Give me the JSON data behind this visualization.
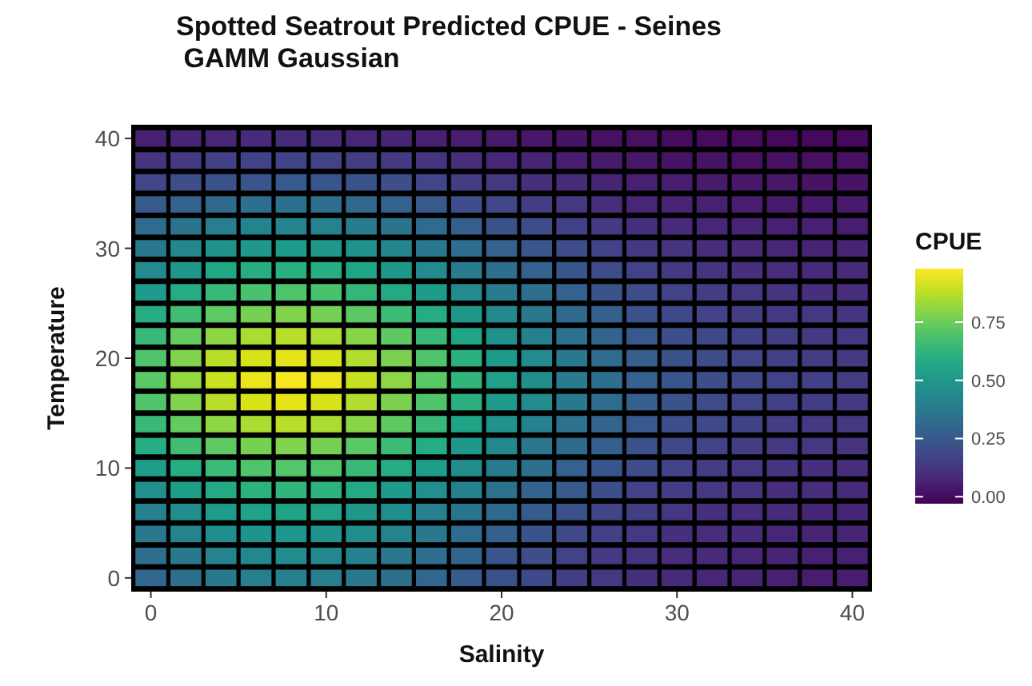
{
  "chart_data": {
    "type": "heatmap",
    "title": "Spotted Seatrout Predicted CPUE - Seines\n GAMM Gaussian",
    "xlabel": "Salinity",
    "ylabel": "Temperature",
    "clabel": "CPUE",
    "categories": [
      "0",
      null,
      null,
      null,
      null,
      "10",
      null,
      null,
      null,
      null,
      "20",
      null,
      null,
      null,
      null,
      "30",
      null,
      null,
      null,
      null,
      "40"
    ],
    "y_categories": [
      "40",
      null,
      null,
      null,
      null,
      "30",
      null,
      null,
      null,
      null,
      "20",
      null,
      null,
      null,
      null,
      "10",
      null,
      null,
      null,
      null,
      "0"
    ],
    "clim": [
      -0.03,
      0.98
    ],
    "cticks": [
      {
        "value": 0,
        "label": "0.00"
      },
      {
        "value": 0.25,
        "label": "0.25"
      },
      {
        "value": 0.5,
        "label": "0.50"
      },
      {
        "value": 0.75,
        "label": "0.75"
      }
    ],
    "cells": [
      [
        0.06,
        0.07,
        0.08,
        0.09,
        0.09,
        0.09,
        0.08,
        0.07,
        0.06,
        0.05,
        0.04,
        0.03,
        0.02,
        0.01,
        0.01,
        0,
        0,
        0,
        -0.01,
        -0.01,
        -0.01
      ],
      [
        0.12,
        0.14,
        0.16,
        0.17,
        0.17,
        0.17,
        0.15,
        0.14,
        0.12,
        0.1,
        0.08,
        0.07,
        0.05,
        0.04,
        0.03,
        0.02,
        0.02,
        0.01,
        0.01,
        0.01,
        0.01
      ],
      [
        0.18,
        0.21,
        0.23,
        0.24,
        0.25,
        0.24,
        0.23,
        0.21,
        0.18,
        0.15,
        0.13,
        0.11,
        0.09,
        0.07,
        0.06,
        0.05,
        0.04,
        0.03,
        0.03,
        0.02,
        0.02
      ],
      [
        0.25,
        0.28,
        0.31,
        0.33,
        0.34,
        0.33,
        0.31,
        0.28,
        0.25,
        0.21,
        0.18,
        0.15,
        0.13,
        0.1,
        0.08,
        0.07,
        0.06,
        0.05,
        0.04,
        0.04,
        0.04
      ],
      [
        0.32,
        0.36,
        0.4,
        0.42,
        0.43,
        0.42,
        0.39,
        0.36,
        0.32,
        0.27,
        0.23,
        0.2,
        0.16,
        0.14,
        0.11,
        0.09,
        0.08,
        0.07,
        0.06,
        0.06,
        0.05
      ],
      [
        0.38,
        0.44,
        0.48,
        0.51,
        0.52,
        0.51,
        0.48,
        0.43,
        0.38,
        0.33,
        0.28,
        0.24,
        0.2,
        0.17,
        0.14,
        0.12,
        0.1,
        0.09,
        0.08,
        0.07,
        0.07
      ],
      [
        0.45,
        0.51,
        0.57,
        0.6,
        0.61,
        0.6,
        0.56,
        0.51,
        0.45,
        0.39,
        0.33,
        0.28,
        0.24,
        0.2,
        0.17,
        0.14,
        0.12,
        0.11,
        0.1,
        0.09,
        0.09
      ],
      [
        0.52,
        0.59,
        0.65,
        0.69,
        0.7,
        0.69,
        0.64,
        0.58,
        0.52,
        0.45,
        0.39,
        0.33,
        0.28,
        0.23,
        0.2,
        0.17,
        0.15,
        0.13,
        0.12,
        0.11,
        0.1
      ],
      [
        0.59,
        0.67,
        0.73,
        0.77,
        0.79,
        0.77,
        0.72,
        0.66,
        0.59,
        0.51,
        0.44,
        0.37,
        0.31,
        0.27,
        0.22,
        0.19,
        0.17,
        0.15,
        0.13,
        0.13,
        0.12
      ],
      [
        0.65,
        0.74,
        0.81,
        0.85,
        0.87,
        0.85,
        0.8,
        0.73,
        0.65,
        0.56,
        0.48,
        0.41,
        0.35,
        0.29,
        0.25,
        0.21,
        0.19,
        0.17,
        0.15,
        0.14,
        0.13
      ],
      [
        0.7,
        0.79,
        0.87,
        0.92,
        0.94,
        0.92,
        0.86,
        0.78,
        0.7,
        0.61,
        0.52,
        0.45,
        0.38,
        0.32,
        0.27,
        0.23,
        0.2,
        0.18,
        0.16,
        0.15,
        0.14
      ],
      [
        0.72,
        0.82,
        0.9,
        0.95,
        0.97,
        0.95,
        0.89,
        0.81,
        0.72,
        0.63,
        0.54,
        0.46,
        0.39,
        0.33,
        0.28,
        0.24,
        0.21,
        0.19,
        0.17,
        0.16,
        0.15
      ],
      [
        0.7,
        0.79,
        0.87,
        0.92,
        0.94,
        0.92,
        0.86,
        0.78,
        0.7,
        0.61,
        0.52,
        0.45,
        0.38,
        0.32,
        0.27,
        0.23,
        0.2,
        0.18,
        0.16,
        0.15,
        0.14
      ],
      [
        0.65,
        0.74,
        0.81,
        0.85,
        0.87,
        0.85,
        0.8,
        0.73,
        0.65,
        0.56,
        0.48,
        0.41,
        0.35,
        0.29,
        0.25,
        0.21,
        0.19,
        0.17,
        0.15,
        0.14,
        0.13
      ],
      [
        0.59,
        0.67,
        0.73,
        0.77,
        0.79,
        0.77,
        0.72,
        0.66,
        0.59,
        0.51,
        0.44,
        0.37,
        0.31,
        0.27,
        0.22,
        0.19,
        0.17,
        0.15,
        0.13,
        0.13,
        0.12
      ],
      [
        0.53,
        0.6,
        0.66,
        0.7,
        0.71,
        0.7,
        0.65,
        0.59,
        0.53,
        0.46,
        0.39,
        0.33,
        0.28,
        0.24,
        0.2,
        0.17,
        0.15,
        0.13,
        0.12,
        0.11,
        0.1
      ],
      [
        0.47,
        0.53,
        0.58,
        0.62,
        0.63,
        0.62,
        0.58,
        0.52,
        0.47,
        0.41,
        0.35,
        0.29,
        0.25,
        0.21,
        0.17,
        0.15,
        0.13,
        0.12,
        0.1,
        0.1,
        0.09
      ],
      [
        0.41,
        0.47,
        0.52,
        0.55,
        0.56,
        0.55,
        0.51,
        0.47,
        0.41,
        0.36,
        0.31,
        0.26,
        0.22,
        0.18,
        0.15,
        0.13,
        0.11,
        0.1,
        0.09,
        0.08,
        0.08
      ],
      [
        0.37,
        0.42,
        0.46,
        0.49,
        0.5,
        0.49,
        0.46,
        0.42,
        0.37,
        0.32,
        0.27,
        0.23,
        0.19,
        0.16,
        0.13,
        0.11,
        0.1,
        0.09,
        0.08,
        0.07,
        0.07
      ],
      [
        0.33,
        0.38,
        0.42,
        0.44,
        0.45,
        0.44,
        0.41,
        0.37,
        0.33,
        0.29,
        0.24,
        0.21,
        0.17,
        0.14,
        0.12,
        0.1,
        0.09,
        0.08,
        0.07,
        0.06,
        0.06
      ],
      [
        0.3,
        0.34,
        0.38,
        0.4,
        0.41,
        0.4,
        0.37,
        0.34,
        0.3,
        0.26,
        0.22,
        0.19,
        0.15,
        0.13,
        0.11,
        0.09,
        0.08,
        0.07,
        0.06,
        0.05,
        0.05
      ]
    ]
  }
}
